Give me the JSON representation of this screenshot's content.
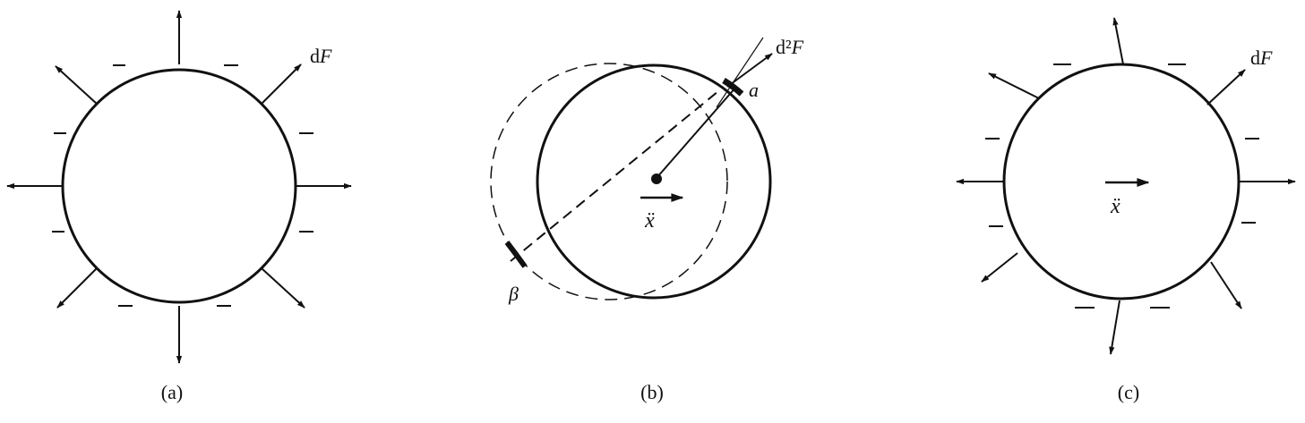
{
  "panels": [
    {
      "id": "a",
      "caption": "(a)",
      "force_label_d": "d",
      "force_label_var": "F"
    },
    {
      "id": "b",
      "caption": "(b)",
      "force_label_d": "d²",
      "force_label_var": "F",
      "point_a": "a",
      "point_beta": "β",
      "accel_label": "ẍ"
    },
    {
      "id": "c",
      "caption": "(c)",
      "force_label_d": "d",
      "force_label_var": "F",
      "accel_label": "ẍ"
    }
  ],
  "colors": {
    "stroke": "#111111",
    "background": "#ffffff"
  }
}
